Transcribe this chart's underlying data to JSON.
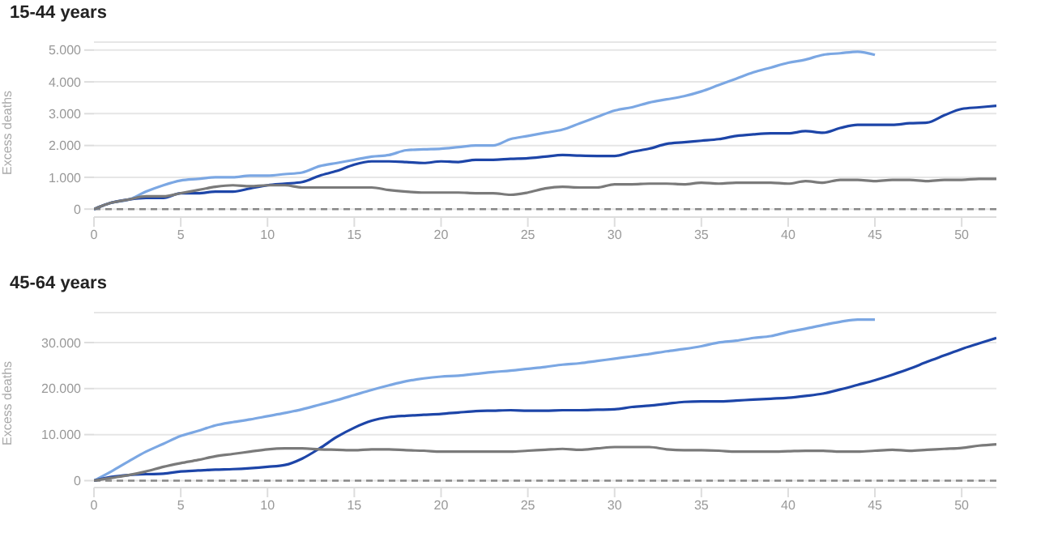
{
  "chart_data": [
    {
      "type": "line",
      "title": "15-44 years",
      "ylabel": "Excess deaths",
      "x": [
        0,
        1,
        2,
        3,
        4,
        5,
        6,
        7,
        8,
        9,
        10,
        11,
        12,
        13,
        14,
        15,
        16,
        17,
        18,
        19,
        20,
        21,
        22,
        23,
        24,
        25,
        26,
        27,
        28,
        29,
        30,
        31,
        32,
        33,
        34,
        35,
        36,
        37,
        38,
        39,
        40,
        41,
        42,
        43,
        44,
        45,
        46,
        47,
        48,
        49,
        50,
        51,
        52
      ],
      "xlim": [
        0,
        52
      ],
      "xticks": [
        0,
        5,
        10,
        15,
        20,
        25,
        30,
        35,
        40,
        45,
        50
      ],
      "ylim": [
        -250,
        5250
      ],
      "yticks": [
        0,
        {
          "value": 1000,
          "label": "1.000"
        },
        {
          "value": 2000,
          "label": "2.000"
        },
        {
          "value": 3000,
          "label": "3.000"
        },
        {
          "value": 4000,
          "label": "4.000"
        },
        {
          "value": 5000,
          "label": "5.000"
        }
      ],
      "grid": "y",
      "legend": false,
      "marker": "none",
      "line_style": "solid",
      "ref_lines": [
        {
          "axis": "y",
          "value": 0,
          "color": "#888888",
          "line_style": "dashed"
        }
      ],
      "series": [
        {
          "color": "#7ba7e3",
          "values": [
            0,
            200,
            300,
            550,
            750,
            900,
            950,
            1000,
            1000,
            1050,
            1050,
            1100,
            1150,
            1350,
            1450,
            1550,
            1650,
            1700,
            1850,
            1880,
            1900,
            1950,
            2000,
            2000,
            2200,
            2300,
            2400,
            2500,
            2700,
            2900,
            3100,
            3200,
            3350,
            3450,
            3550,
            3700,
            3900,
            4100,
            4300,
            4450,
            4600,
            4700,
            4850,
            4900,
            4950,
            4850,
            null,
            null,
            null,
            null,
            null,
            null,
            null
          ]
        },
        {
          "color": "#1d45a8",
          "values": [
            0,
            200,
            300,
            350,
            350,
            500,
            500,
            550,
            550,
            650,
            750,
            800,
            850,
            1050,
            1200,
            1400,
            1500,
            1500,
            1480,
            1450,
            1500,
            1480,
            1550,
            1550,
            1580,
            1600,
            1650,
            1700,
            1680,
            1670,
            1670,
            1800,
            1900,
            2050,
            2100,
            2150,
            2200,
            2300,
            2350,
            2380,
            2380,
            2450,
            2400,
            2550,
            2650,
            2650,
            2650,
            2700,
            2720,
            2950,
            3150,
            3200,
            3250
          ]
        },
        {
          "color": "#7a7a7a",
          "values": [
            0,
            200,
            300,
            400,
            400,
            500,
            600,
            700,
            750,
            720,
            750,
            750,
            680,
            680,
            680,
            680,
            680,
            600,
            550,
            520,
            520,
            520,
            500,
            500,
            450,
            520,
            650,
            700,
            680,
            680,
            780,
            780,
            800,
            800,
            780,
            830,
            800,
            830,
            830,
            830,
            800,
            880,
            830,
            920,
            920,
            880,
            920,
            920,
            880,
            920,
            920,
            950,
            950
          ]
        }
      ]
    },
    {
      "type": "line",
      "title": "45-64 years",
      "ylabel": "Excess deaths",
      "x": [
        0,
        1,
        2,
        3,
        4,
        5,
        6,
        7,
        8,
        9,
        10,
        11,
        12,
        13,
        14,
        15,
        16,
        17,
        18,
        19,
        20,
        21,
        22,
        23,
        24,
        25,
        26,
        27,
        28,
        29,
        30,
        31,
        32,
        33,
        34,
        35,
        36,
        37,
        38,
        39,
        40,
        41,
        42,
        43,
        44,
        45,
        46,
        47,
        48,
        49,
        50,
        51,
        52
      ],
      "xlim": [
        0,
        52
      ],
      "xticks": [
        0,
        5,
        10,
        15,
        20,
        25,
        30,
        35,
        40,
        45,
        50
      ],
      "ylim": [
        -1500,
        36500
      ],
      "yticks": [
        0,
        {
          "value": 10000,
          "label": "10.000"
        },
        {
          "value": 20000,
          "label": "20.000"
        },
        {
          "value": 30000,
          "label": "30.000"
        }
      ],
      "grid": "y",
      "legend": false,
      "marker": "none",
      "line_style": "solid",
      "ref_lines": [
        {
          "axis": "y",
          "value": 0,
          "color": "#888888",
          "line_style": "dashed"
        }
      ],
      "series": [
        {
          "color": "#7ba7e3",
          "values": [
            0,
            2000,
            4200,
            6300,
            8000,
            9700,
            10800,
            12000,
            12700,
            13300,
            14000,
            14700,
            15500,
            16500,
            17500,
            18600,
            19700,
            20700,
            21600,
            22200,
            22600,
            22800,
            23200,
            23600,
            23900,
            24300,
            24700,
            25200,
            25500,
            26000,
            26500,
            27000,
            27500,
            28100,
            28600,
            29200,
            30000,
            30400,
            31000,
            31400,
            32300,
            33000,
            33800,
            34500,
            35000,
            35000,
            null,
            null,
            null,
            null,
            null,
            null,
            null
          ]
        },
        {
          "color": "#1d45a8",
          "values": [
            0,
            800,
            1200,
            1400,
            1500,
            2000,
            2200,
            2400,
            2500,
            2700,
            3000,
            3400,
            4800,
            7000,
            9500,
            11500,
            13000,
            13800,
            14100,
            14300,
            14500,
            14800,
            15100,
            15200,
            15300,
            15200,
            15200,
            15300,
            15300,
            15400,
            15500,
            16000,
            16300,
            16700,
            17100,
            17200,
            17200,
            17400,
            17600,
            17800,
            18000,
            18400,
            18900,
            19800,
            20800,
            21800,
            23000,
            24300,
            25800,
            27200,
            28600,
            29800,
            31000
          ]
        },
        {
          "color": "#7a7a7a",
          "values": [
            0,
            600,
            1200,
            2000,
            3000,
            3800,
            4500,
            5300,
            5800,
            6300,
            6800,
            7000,
            7000,
            6800,
            6700,
            6600,
            6800,
            6800,
            6600,
            6500,
            6300,
            6300,
            6300,
            6300,
            6300,
            6500,
            6700,
            6900,
            6700,
            7000,
            7300,
            7300,
            7300,
            6800,
            6600,
            6600,
            6500,
            6300,
            6300,
            6300,
            6400,
            6500,
            6500,
            6300,
            6300,
            6500,
            6700,
            6500,
            6700,
            6900,
            7100,
            7600,
            7900
          ]
        }
      ]
    }
  ]
}
